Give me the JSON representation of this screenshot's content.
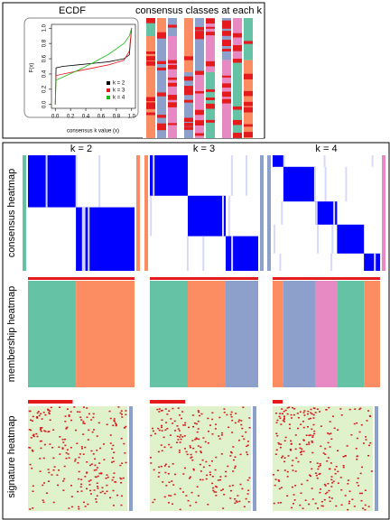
{
  "chart_data": {
    "type": "line",
    "title": "ECDF",
    "x_label": "consensus k value (x)",
    "y_label": "F(x)",
    "x": [
      0,
      0.01,
      0.1,
      0.3,
      0.5,
      0.7,
      0.9,
      0.97,
      1.0
    ],
    "series": [
      {
        "name": "k = 2",
        "color": "#000000",
        "values": [
          0,
          0.48,
          0.5,
          0.52,
          0.54,
          0.56,
          0.6,
          0.65,
          1.0
        ]
      },
      {
        "name": "k = 3",
        "color": "#e41a1c",
        "values": [
          0,
          0.38,
          0.4,
          0.44,
          0.48,
          0.52,
          0.58,
          0.7,
          1.0
        ]
      },
      {
        "name": "k = 4",
        "color": "#1cb81c",
        "values": [
          0,
          0.32,
          0.36,
          0.45,
          0.55,
          0.66,
          0.8,
          0.9,
          1.0
        ]
      }
    ],
    "xlim": [
      -0.05,
      1.05
    ],
    "ylim": [
      -0.05,
      1.05
    ],
    "xticks": [
      {
        "value": 0,
        "label": "0.0"
      },
      0.2,
      0.4,
      0.6,
      0.8,
      {
        "value": 1,
        "label": "1.0"
      }
    ],
    "yticks": [
      {
        "value": 0,
        "label": "0.0"
      },
      0.2,
      0.4,
      0.6,
      0.8,
      {
        "value": 1,
        "label": "1.0"
      }
    ],
    "legend": "bottom-right"
  },
  "classes_title": "consensus classes at each k",
  "columns": [
    "k = 2",
    "k = 3",
    "k = 4"
  ],
  "rows": [
    "consensus heatmap",
    "membership heatmap",
    "signature heatmap"
  ],
  "class_colors": [
    "#66c2a5",
    "#fc8d62",
    "#8da0cb",
    "#e78ac3"
  ],
  "consensus_color": "#0000ff"
}
